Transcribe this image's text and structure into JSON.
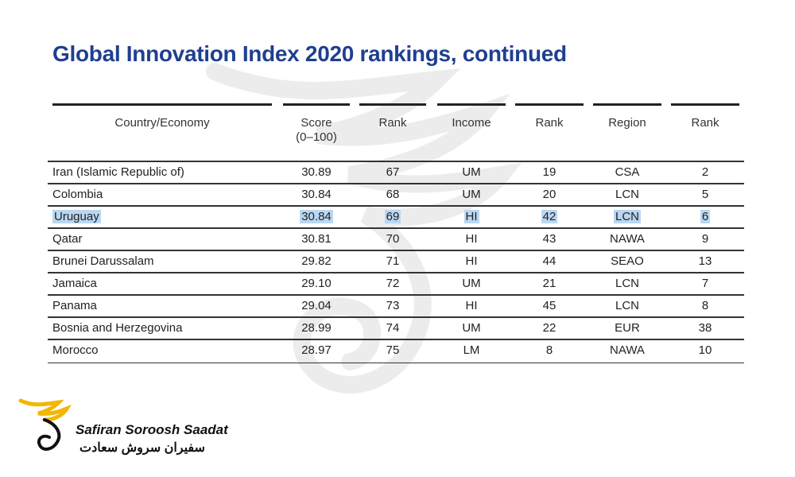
{
  "title": "Global Innovation Index 2020 rankings, continued",
  "headers": {
    "country": "Country/Economy",
    "score": "Score",
    "score_range": "(0–100)",
    "rank1": "Rank",
    "income": "Income",
    "rank2": "Rank",
    "region": "Region",
    "rank3": "Rank"
  },
  "rows": [
    {
      "country": "Iran (Islamic Republic of)",
      "score": "30.89",
      "rank": "67",
      "income": "UM",
      "income_rank": "19",
      "region": "CSA",
      "region_rank": "2"
    },
    {
      "country": "Colombia",
      "score": "30.84",
      "rank": "68",
      "income": "UM",
      "income_rank": "20",
      "region": "LCN",
      "region_rank": "5"
    },
    {
      "country": "Uruguay",
      "score": "30.84",
      "rank": "69",
      "income": "HI",
      "income_rank": "42",
      "region": "LCN",
      "region_rank": "6"
    },
    {
      "country": "Qatar",
      "score": "30.81",
      "rank": "70",
      "income": "HI",
      "income_rank": "43",
      "region": "NAWA",
      "region_rank": "9"
    },
    {
      "country": "Brunei Darussalam",
      "score": "29.82",
      "rank": "71",
      "income": "HI",
      "income_rank": "44",
      "region": "SEAO",
      "region_rank": "13"
    },
    {
      "country": "Jamaica",
      "score": "29.10",
      "rank": "72",
      "income": "UM",
      "income_rank": "21",
      "region": "LCN",
      "region_rank": "7"
    },
    {
      "country": "Panama",
      "score": "29.04",
      "rank": "73",
      "income": "HI",
      "income_rank": "45",
      "region": "LCN",
      "region_rank": "8"
    },
    {
      "country": "Bosnia and Herzegovina",
      "score": "28.99",
      "rank": "74",
      "income": "UM",
      "income_rank": "22",
      "region": "EUR",
      "region_rank": "38"
    },
    {
      "country": "Morocco",
      "score": "28.97",
      "rank": "75",
      "income": "LM",
      "income_rank": "8",
      "region": "NAWA",
      "region_rank": "10"
    }
  ],
  "highlight_color": "#b9d7f2",
  "title_color": "#1f3f8f",
  "logo": {
    "name_en": "Safiran Soroosh Saadat",
    "name_fa": "سفیران سروش سعادت",
    "accent": "#f2b705"
  }
}
